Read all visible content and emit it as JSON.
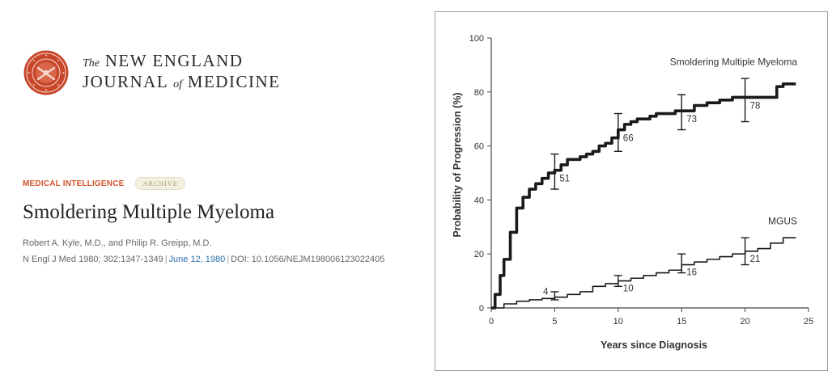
{
  "header": {
    "journal_the": "The",
    "journal_name_1": "NEW ENGLAND",
    "journal_name_2a": "JOURNAL",
    "journal_of": "of",
    "journal_name_2b": "MEDICINE",
    "seal_icon": "nejm-seal-icon",
    "brand_color": "#c8472b"
  },
  "article": {
    "section": "MEDICAL INTELLIGENCE",
    "badge": "ARCHIVE",
    "title": "Smoldering Multiple Myeloma",
    "authors": "Robert A. Kyle, M.D., and Philip R. Greipp, M.D.",
    "citation": "N Engl J Med 1980; 302:1347-1349",
    "date": "June 12, 1980",
    "doi": "DOI: 10.1056/NEJM198006123022405",
    "section_color": "#d4552b",
    "link_color": "#2c6fae"
  },
  "chart_data": {
    "type": "line",
    "title": "",
    "xlabel": "Years since Diagnosis",
    "ylabel": "Probability of Progression (%)",
    "xlim": [
      0,
      25
    ],
    "ylim": [
      0,
      100
    ],
    "x_ticks": [
      0,
      5,
      10,
      15,
      20,
      25
    ],
    "y_ticks": [
      0,
      20,
      40,
      60,
      80,
      100
    ],
    "grid": false,
    "series": [
      {
        "name": "Smoldering Multiple Myeloma",
        "step": true,
        "x": [
          0,
          0.3,
          0.7,
          1.0,
          1.5,
          2.0,
          2.5,
          3.0,
          3.5,
          4.0,
          4.5,
          5.0,
          5.5,
          6.0,
          6.5,
          7.0,
          7.5,
          8.0,
          8.5,
          9.0,
          9.5,
          10.0,
          10.5,
          11.0,
          11.5,
          12.0,
          12.5,
          13.0,
          13.5,
          14.0,
          14.5,
          15.0,
          16.0,
          17.0,
          18.0,
          19.0,
          20.0,
          21.0,
          22.0,
          22.5,
          23.0,
          24.0
        ],
        "y": [
          0,
          5,
          12,
          18,
          28,
          37,
          41,
          44,
          46,
          48,
          50,
          51,
          53,
          55,
          55,
          56,
          57,
          58,
          60,
          61,
          63,
          66,
          68,
          69,
          70,
          70,
          71,
          72,
          72,
          72,
          73,
          73,
          75,
          76,
          77,
          78,
          78,
          78,
          78,
          82,
          83,
          83
        ],
        "labels": [
          {
            "x": 5,
            "y": 51,
            "text": "51"
          },
          {
            "x": 10,
            "y": 66,
            "text": "66"
          },
          {
            "x": 15,
            "y": 73,
            "text": "73"
          },
          {
            "x": 20,
            "y": 78,
            "text": "78"
          }
        ],
        "error_bars": [
          {
            "x": 5,
            "low": 44,
            "high": 57
          },
          {
            "x": 10,
            "low": 58,
            "high": 72
          },
          {
            "x": 15,
            "low": 66,
            "high": 79
          },
          {
            "x": 20,
            "low": 69,
            "high": 85
          }
        ]
      },
      {
        "name": "MGUS",
        "step": true,
        "x": [
          0,
          1,
          2,
          3,
          4,
          5,
          6,
          7,
          8,
          9,
          10,
          11,
          12,
          13,
          14,
          15,
          16,
          17,
          18,
          19,
          20,
          21,
          22,
          23,
          24
        ],
        "y": [
          0,
          1.5,
          2.5,
          3,
          3.5,
          4,
          5,
          6,
          8,
          9,
          10,
          11,
          12,
          13,
          14,
          16,
          17,
          18,
          19,
          20,
          21,
          22,
          24,
          26,
          26
        ],
        "labels": [
          {
            "x": 5,
            "y": 4,
            "text": "4"
          },
          {
            "x": 10,
            "y": 10,
            "text": "10"
          },
          {
            "x": 15,
            "y": 16,
            "text": "16"
          },
          {
            "x": 20,
            "y": 21,
            "text": "21"
          }
        ],
        "error_bars": [
          {
            "x": 5,
            "low": 3,
            "high": 6
          },
          {
            "x": 10,
            "low": 8,
            "high": 12
          },
          {
            "x": 15,
            "low": 13,
            "high": 20
          },
          {
            "x": 20,
            "low": 16,
            "high": 26
          }
        ]
      }
    ]
  }
}
